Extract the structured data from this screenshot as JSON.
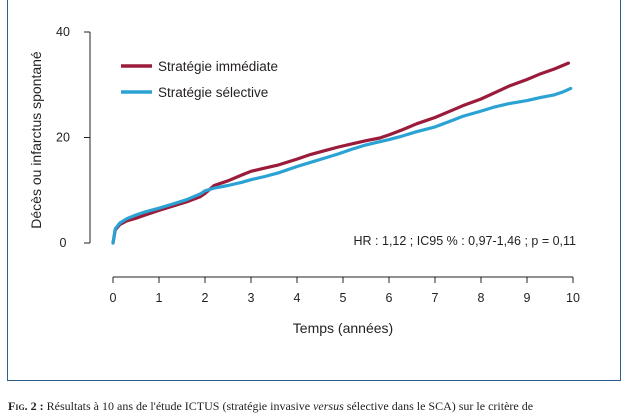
{
  "colors": {
    "immediate": "#9b1b3b",
    "selective": "#2aa3d4",
    "axis": "#231f20",
    "frame": "#2f5f8f"
  },
  "chart_data": {
    "type": "line",
    "ylabel": "Décès ou infarctus spontané",
    "xlabel": "Temps (années)",
    "xlim": [
      0,
      10
    ],
    "ylim": [
      0,
      40
    ],
    "xticks": [
      "0",
      "1",
      "2",
      "3",
      "4",
      "5",
      "6",
      "7",
      "8",
      "9",
      "10"
    ],
    "yticks": [
      "0",
      "20",
      "40"
    ],
    "legend_position": "top-left",
    "annotation": "HR : 1,12 ; IC95 % : 0,97-1,46 ; p = 0,11",
    "series": [
      {
        "name": "Stratégie immédiate",
        "color": "#9b1b3b",
        "x": [
          0,
          0.05,
          0.15,
          0.3,
          0.5,
          0.7,
          1.0,
          1.3,
          1.6,
          1.9,
          2.0,
          2.2,
          2.5,
          2.8,
          3.0,
          3.3,
          3.6,
          4.0,
          4.3,
          4.6,
          4.9,
          5.2,
          5.5,
          5.8,
          6.0,
          6.3,
          6.6,
          7.0,
          7.3,
          7.6,
          8.0,
          8.3,
          8.6,
          9.0,
          9.3,
          9.6,
          9.9
        ],
        "y": [
          0,
          2.5,
          3.5,
          4.2,
          4.7,
          5.3,
          6.2,
          7.0,
          7.8,
          8.8,
          9.4,
          10.9,
          11.8,
          12.9,
          13.6,
          14.2,
          14.8,
          15.9,
          16.8,
          17.5,
          18.2,
          18.8,
          19.4,
          19.9,
          20.5,
          21.5,
          22.6,
          23.8,
          24.9,
          26.0,
          27.3,
          28.5,
          29.7,
          31.0,
          32.1,
          33.0,
          34.1
        ]
      },
      {
        "name": "Stratégie sélective",
        "color": "#2aa3d4",
        "x": [
          0,
          0.05,
          0.15,
          0.3,
          0.5,
          0.7,
          1.0,
          1.3,
          1.6,
          1.9,
          2.0,
          2.2,
          2.5,
          2.8,
          3.0,
          3.3,
          3.6,
          4.0,
          4.3,
          4.6,
          4.9,
          5.2,
          5.5,
          5.8,
          6.0,
          6.3,
          6.6,
          7.0,
          7.3,
          7.6,
          8.0,
          8.3,
          8.6,
          9.0,
          9.3,
          9.6,
          9.8,
          9.95
        ],
        "y": [
          0,
          2.7,
          3.8,
          4.6,
          5.3,
          5.9,
          6.6,
          7.4,
          8.2,
          9.3,
          9.9,
          10.4,
          10.9,
          11.5,
          12.0,
          12.6,
          13.3,
          14.5,
          15.3,
          16.1,
          16.9,
          17.8,
          18.6,
          19.2,
          19.6,
          20.3,
          21.1,
          22.0,
          23.0,
          24.0,
          25.0,
          25.8,
          26.4,
          27.0,
          27.6,
          28.1,
          28.7,
          29.3
        ]
      }
    ]
  },
  "caption": {
    "label": "Fig. 2 :",
    "text_before": " Résultats à 10 ans de l'étude ICTUS (stratégie invasive ",
    "text_italic": "versus",
    "text_after": " sélective dans le SCA) sur le critère de"
  }
}
